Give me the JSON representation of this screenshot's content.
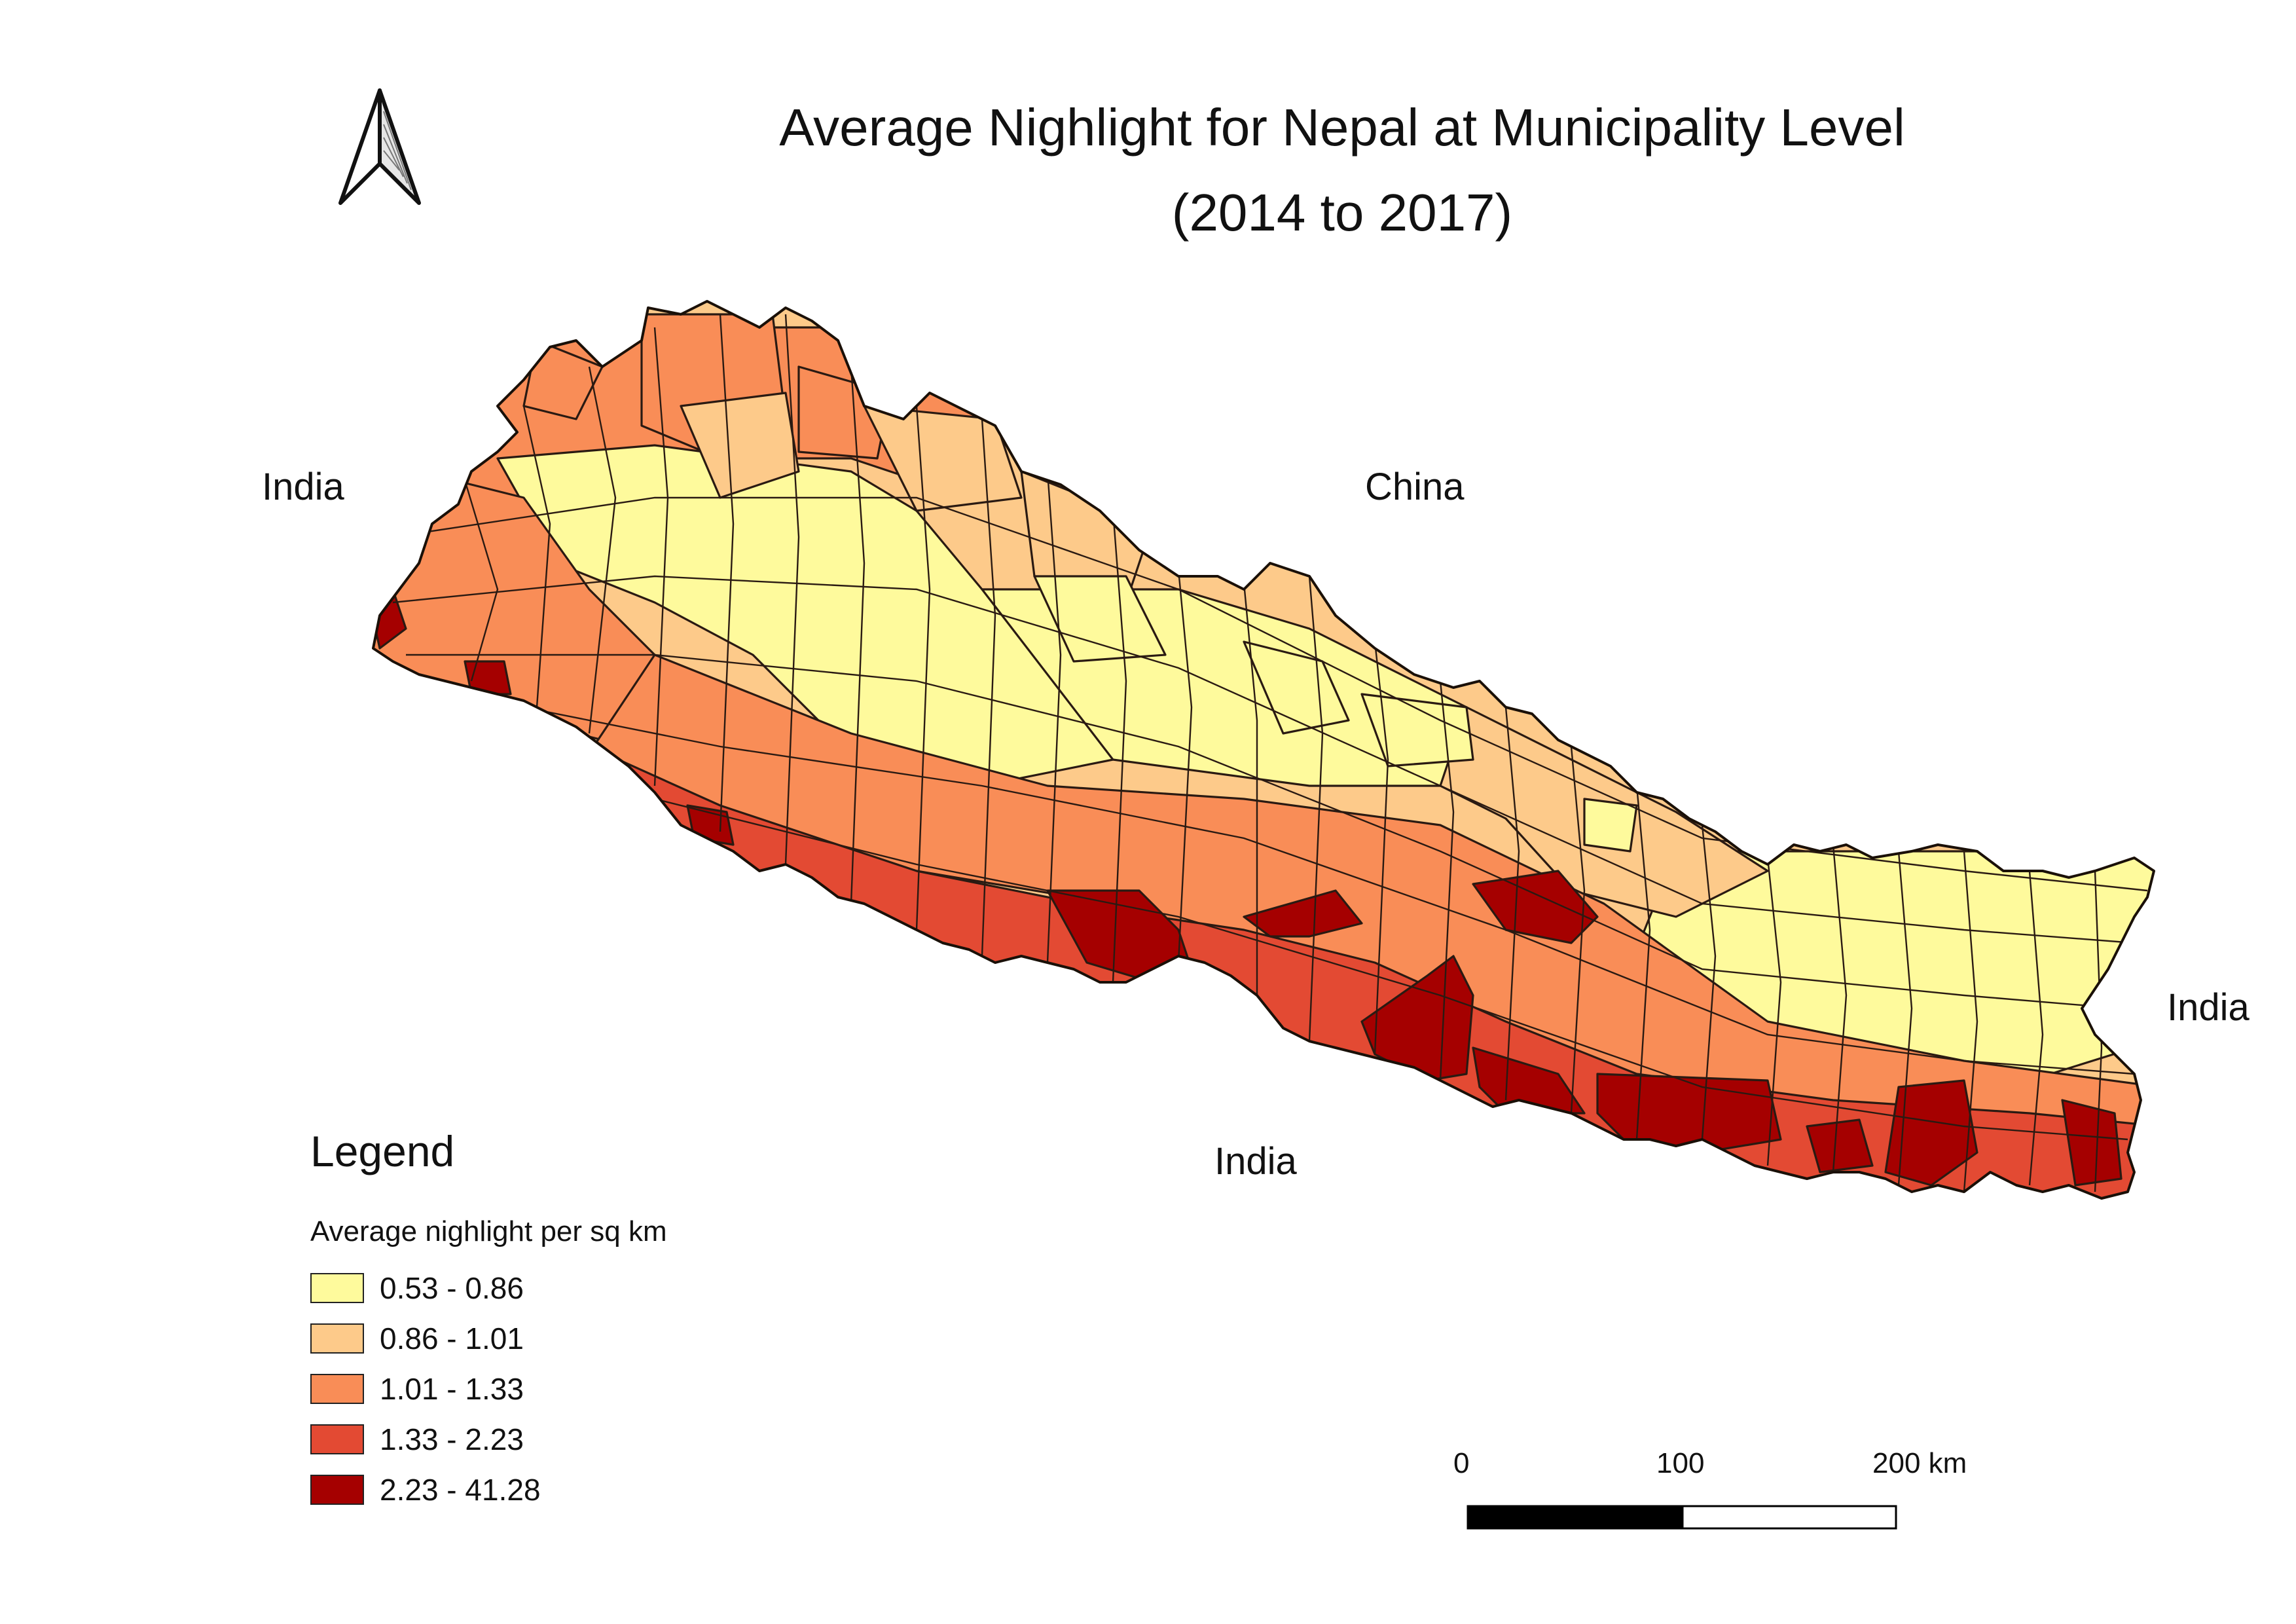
{
  "map": {
    "title_line1": "Average Nighlight for Nepal at Municipality Level",
    "title_line2": "(2014 to 2017)",
    "labels": {
      "india_west": "India",
      "china": "China",
      "india_south": "India",
      "india_east": "India"
    }
  },
  "legend": {
    "heading": "Legend",
    "subtitle": "Average nighlight per sq km",
    "classes": [
      {
        "label": "0.53 - 0.86",
        "color": "#fefa9c"
      },
      {
        "label": "0.86 - 1.01",
        "color": "#fdca8a"
      },
      {
        "label": "1.01 - 1.33",
        "color": "#f98d57"
      },
      {
        "label": "1.33 - 2.23",
        "color": "#e34a33"
      },
      {
        "label": "2.23 - 41.28",
        "color": "#a50000"
      }
    ]
  },
  "scale_bar": {
    "tick_0": "0",
    "tick_100": "100",
    "tick_200": "200 km"
  },
  "north_arrow": {
    "icon": "north-arrow-icon"
  }
}
